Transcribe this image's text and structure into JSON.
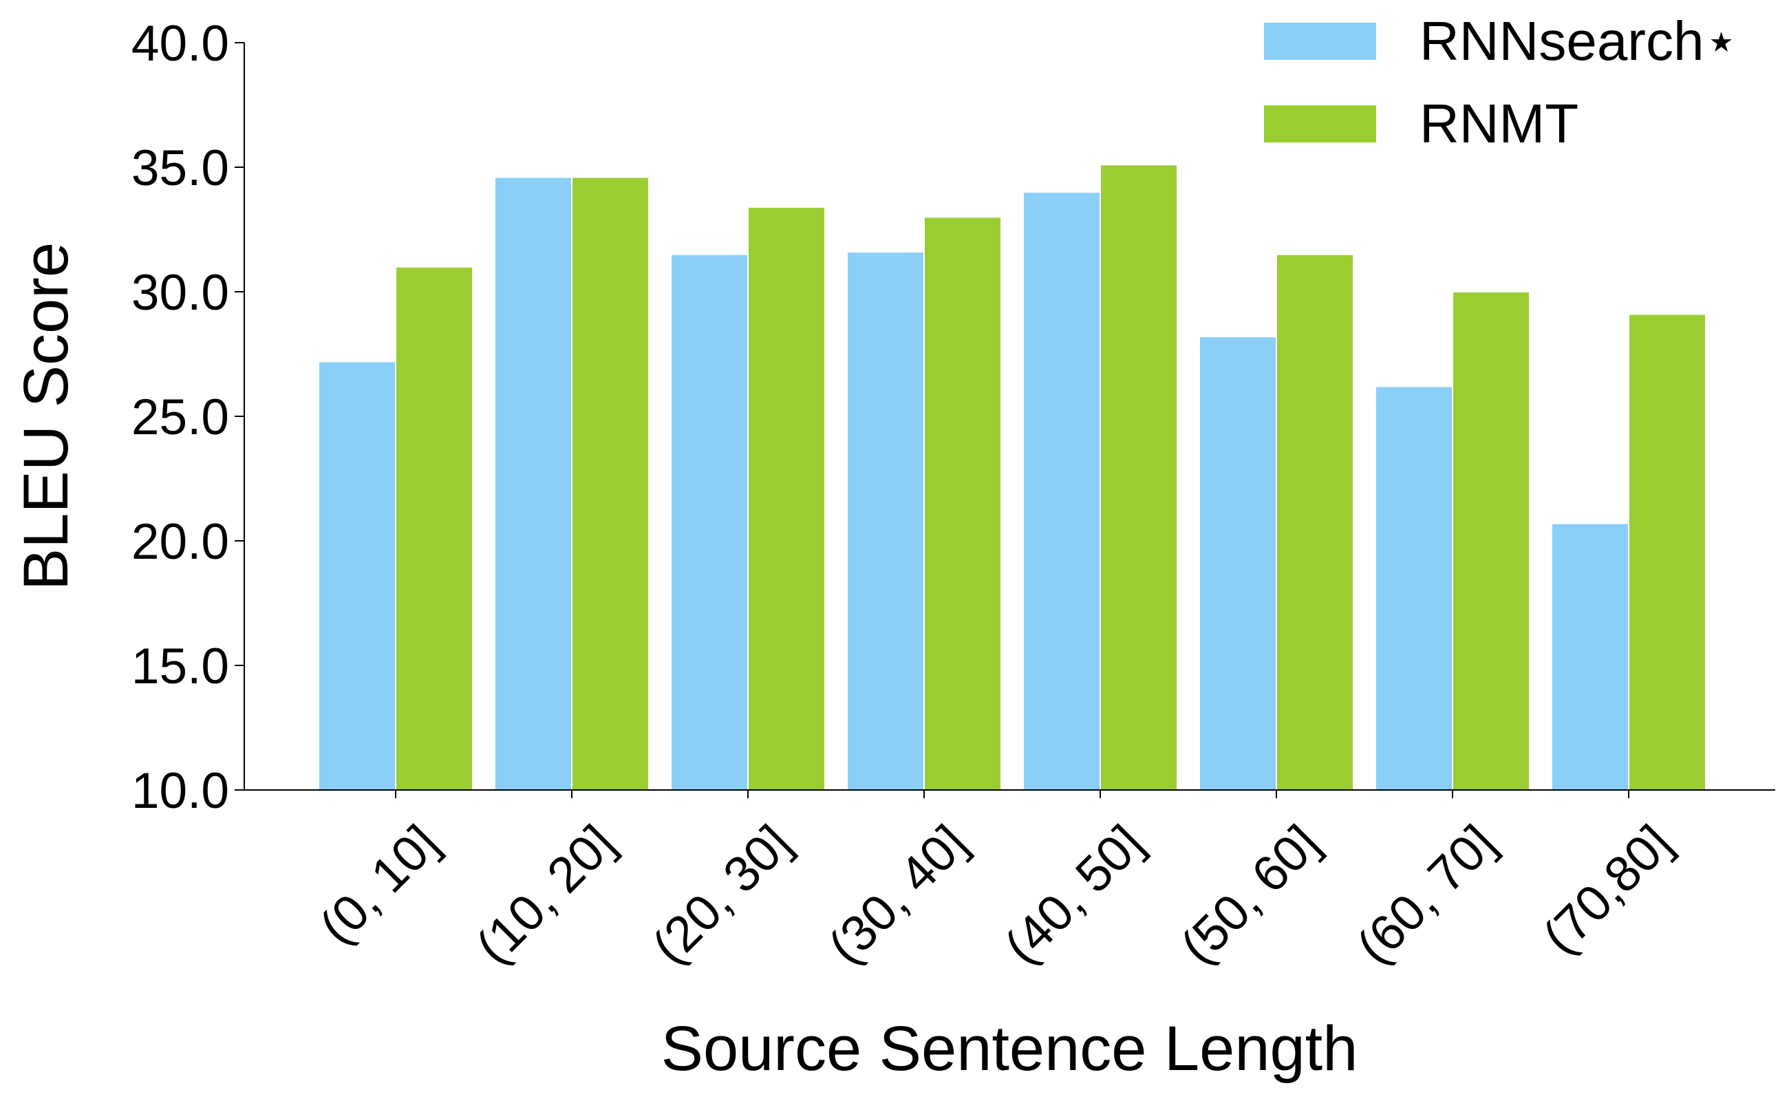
{
  "chart_data": {
    "type": "bar",
    "x_label": "Source Sentence Length",
    "y_label": "BLEU Score",
    "categories": [
      "(0, 10]",
      "(10, 20]",
      "(20, 30]",
      "(30, 40]",
      "(40, 50]",
      "(50, 60]",
      "(60, 70]",
      "(70,80]"
    ],
    "series": [
      {
        "name": "RNNsearch⋆",
        "color": "#89cff8",
        "values": [
          27.2,
          34.6,
          31.5,
          31.6,
          34.0,
          28.2,
          26.2,
          20.7
        ]
      },
      {
        "name": "RNMT",
        "color": "#9acd32",
        "values": [
          31.0,
          34.6,
          33.4,
          33.0,
          35.1,
          31.5,
          30.0,
          29.1
        ]
      }
    ],
    "ylim": [
      10,
      40
    ],
    "yticks": [
      {
        "value": 10,
        "label": "10.0"
      },
      {
        "value": 15,
        "label": "15.0"
      },
      {
        "value": 20,
        "label": "20.0"
      },
      {
        "value": 25,
        "label": "25.0"
      },
      {
        "value": 30,
        "label": "30.0"
      },
      {
        "value": 35,
        "label": "35.0"
      },
      {
        "value": 40,
        "label": "40.0"
      }
    ],
    "legend": "upper right",
    "grid": false
  }
}
